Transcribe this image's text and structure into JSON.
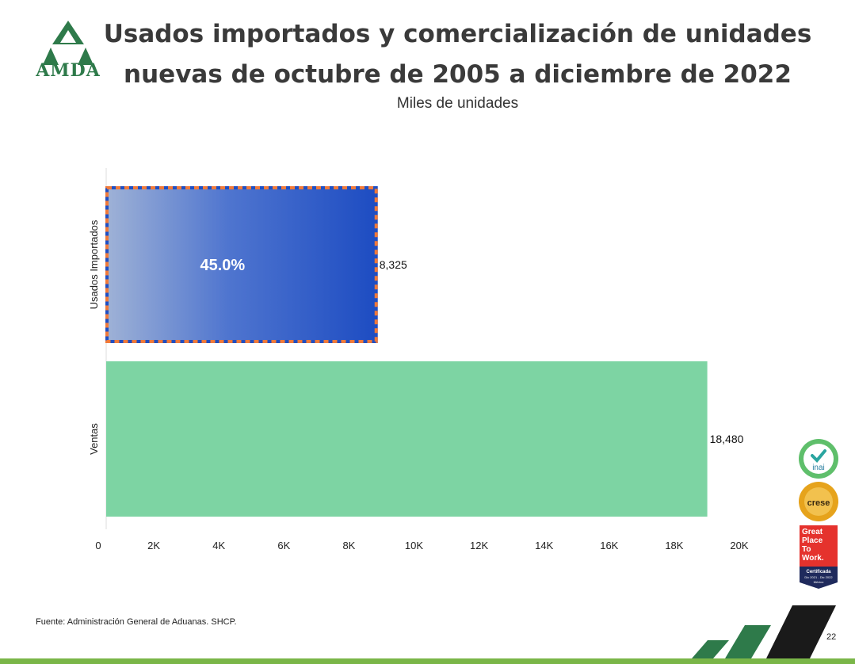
{
  "header": {
    "title_line1": "Usados importados y comercialización de unidades",
    "title_line2": "nuevas de octubre de 2005 a diciembre de 2022",
    "subtitle": "Miles de unidades",
    "logo_text": "AMDA"
  },
  "chart_data": {
    "type": "bar",
    "orientation": "horizontal",
    "categories": [
      "Usados Importados",
      "Ventas"
    ],
    "values": [
      8325,
      18480
    ],
    "value_labels": [
      "8,325",
      "18,480"
    ],
    "inner_label": "45.0%",
    "xlim": [
      0,
      20000
    ],
    "xticks": [
      0,
      2000,
      4000,
      6000,
      8000,
      10000,
      12000,
      14000,
      16000,
      18000,
      20000
    ],
    "xtick_labels": [
      "0",
      "2K",
      "4K",
      "6K",
      "8K",
      "10K",
      "12K",
      "14K",
      "16K",
      "18K",
      "20K"
    ],
    "colors": {
      "usados": "#1e4fc4",
      "ventas": "#7dd4a3",
      "highlight_border": "#f07a3a"
    },
    "grid": false
  },
  "footer": {
    "source": "Fuente: Administración General de Aduanas. SHCP.",
    "page_number": "22"
  },
  "badges": {
    "inai": "inai",
    "crese": "crese",
    "gptw_lines": [
      "Great",
      "Place",
      "To",
      "Work."
    ],
    "gptw_cert": "Certificada",
    "gptw_period": "Dic 2021 - Dic 2022",
    "gptw_country": "México"
  },
  "colors": {
    "brand_green": "#2e7a4a",
    "accent_lime": "#7ab648",
    "dark": "#1a1a1a"
  }
}
